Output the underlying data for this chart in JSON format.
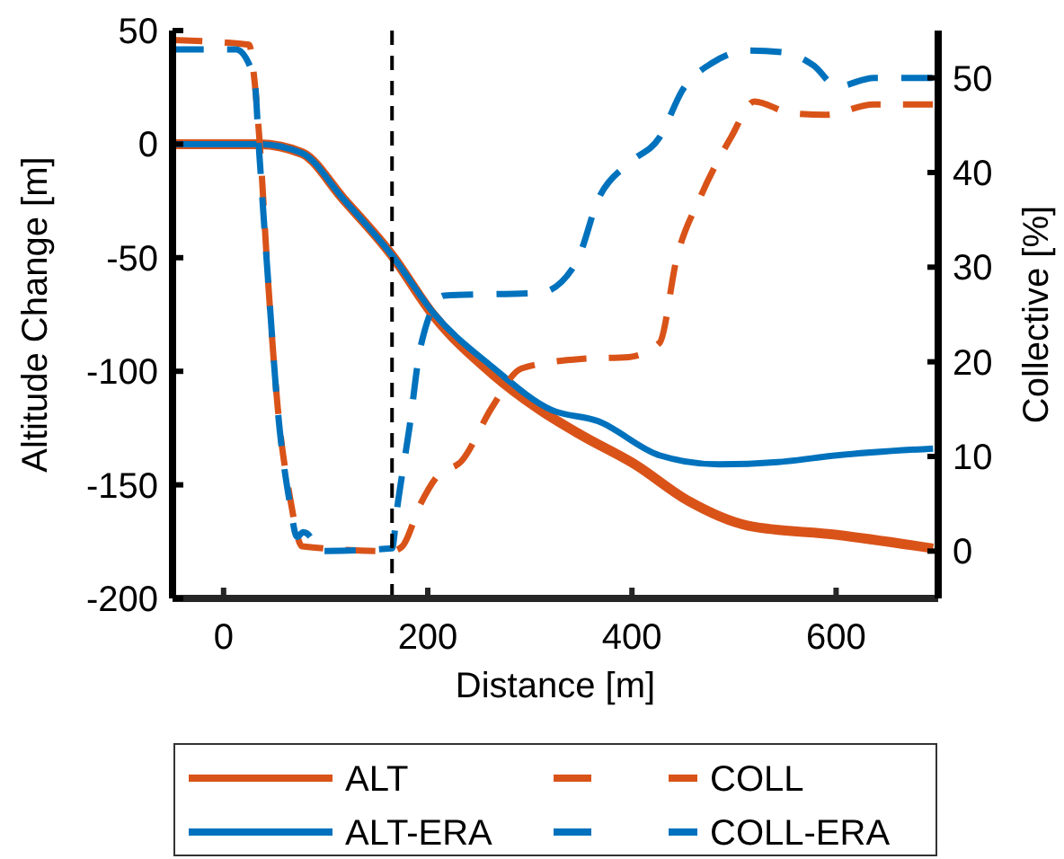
{
  "chart_data": {
    "type": "line",
    "xlabel": "Distance [m]",
    "ylabel": "Altitude Change [m]",
    "y2label": "Collective [%]",
    "xlim": [
      -50,
      700
    ],
    "xticks": [
      0,
      200,
      400,
      600
    ],
    "ylim": [
      -200,
      50
    ],
    "yticks": [
      -200,
      -150,
      -100,
      -50,
      0,
      50
    ],
    "y2lim": [
      -5,
      55
    ],
    "y2ticks": [
      0,
      10,
      20,
      30,
      40,
      50
    ],
    "grid": false,
    "legend": "bottom",
    "ref_lines": [
      {
        "axis": "x",
        "value": 165,
        "color": "#000000",
        "line_style": "dashed"
      }
    ],
    "series": [
      {
        "name": "ALT",
        "color": "#d95319",
        "line_style": "solid",
        "x": [
          -50,
          35,
          77,
          117,
          165,
          205,
          263,
          310,
          350,
          403,
          455,
          514,
          601,
          695
        ],
        "values": [
          0,
          0,
          -4,
          -24,
          -49,
          -75,
          -101,
          -117,
          -128,
          -141,
          -157,
          -168,
          -172,
          -178
        ]
      },
      {
        "name": "ALT-ERA",
        "color": "#0072bd",
        "line_style": "solid",
        "x": [
          -50,
          35,
          77,
          117,
          165,
          205,
          263,
          321,
          367,
          427,
          485,
          543,
          601,
          695
        ],
        "values": [
          0,
          0,
          -4,
          -24,
          -49,
          -74,
          -98,
          -117,
          -122,
          -137,
          -141,
          -140,
          -137,
          -134
        ]
      },
      {
        "name": "COLL",
        "color": "#d95319",
        "line_style": "dashed",
        "axis": "y2",
        "x": [
          -50,
          25,
          30,
          35,
          44,
          53,
          65,
          77,
          165,
          175,
          193,
          210,
          233,
          263,
          292,
          350,
          397,
          427,
          444,
          467,
          497,
          520,
          555,
          590,
          637,
          695
        ],
        "values": [
          54,
          53.5,
          50,
          43.7,
          27.9,
          15.2,
          5.7,
          0.5,
          0,
          0.5,
          5,
          8,
          9.5,
          15.2,
          19.3,
          20.3,
          20.5,
          22,
          31,
          37.4,
          43.7,
          47.5,
          46.3,
          46.1,
          47.2,
          47.2
        ]
      },
      {
        "name": "COLL-ERA",
        "color": "#0072bd",
        "line_style": "dashed",
        "axis": "y2",
        "x": [
          -50,
          12,
          30,
          35,
          44,
          53,
          65,
          72,
          78,
          85,
          92,
          165,
          170,
          182,
          193,
          216,
          310,
          345,
          368,
          397,
          427,
          450,
          479,
          514,
          549,
          578,
          601,
          637,
          695
        ],
        "values": [
          53,
          53,
          50,
          42,
          28,
          15,
          5,
          1.5,
          2,
          1.5,
          0,
          0.3,
          4.5,
          13,
          21.6,
          27,
          27.3,
          30.4,
          37.4,
          41,
          43.7,
          48.8,
          51.6,
          52.9,
          52.7,
          51.3,
          49.1,
          50,
          50
        ]
      }
    ]
  }
}
